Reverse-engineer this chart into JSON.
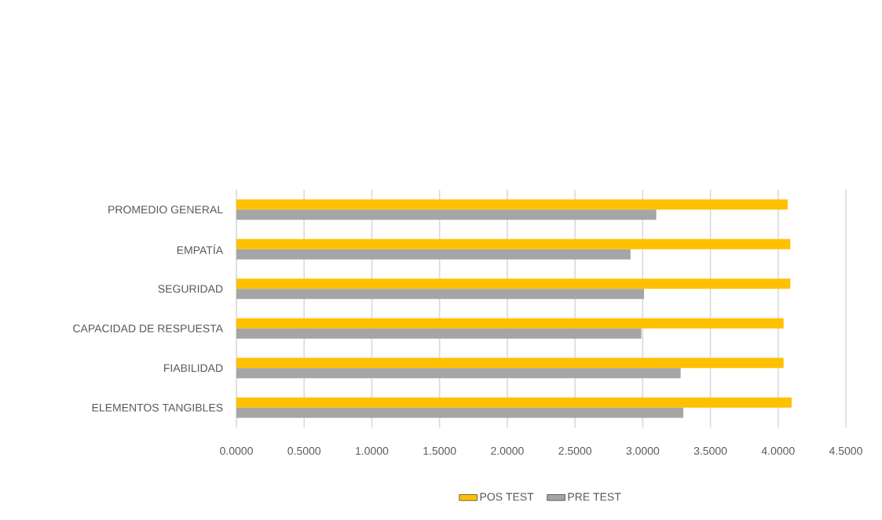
{
  "chart_data": {
    "type": "bar",
    "orientation": "horizontal",
    "categories": [
      "PROMEDIO GENERAL",
      "EMPATÍA",
      "SEGURIDAD",
      "CAPACIDAD DE RESPUESTA",
      "FIABILIDAD",
      "ELEMENTOS TANGIBLES"
    ],
    "series": [
      {
        "name": "POS TEST",
        "color": "#ffc000",
        "values": [
          4.07,
          4.09,
          4.09,
          4.04,
          4.04,
          4.1
        ]
      },
      {
        "name": "PRE TEST",
        "color": "#a5a5a5",
        "values": [
          3.1,
          2.91,
          3.01,
          2.99,
          3.28,
          3.3
        ]
      }
    ],
    "xlim": [
      0,
      4.5
    ],
    "xticks": [
      {
        "value": 0,
        "label": "0.0000"
      },
      {
        "value": 0.5,
        "label": "0.5000"
      },
      {
        "value": 1,
        "label": "1.0000"
      },
      {
        "value": 1.5,
        "label": "1.5000"
      },
      {
        "value": 2,
        "label": "2.0000"
      },
      {
        "value": 2.5,
        "label": "2.5000"
      },
      {
        "value": 3,
        "label": "3.0000"
      },
      {
        "value": 3.5,
        "label": "3.5000"
      },
      {
        "value": 4,
        "label": "4.0000"
      },
      {
        "value": 4.5,
        "label": "4.5000"
      }
    ],
    "grid": "x",
    "legend": "bottom"
  }
}
